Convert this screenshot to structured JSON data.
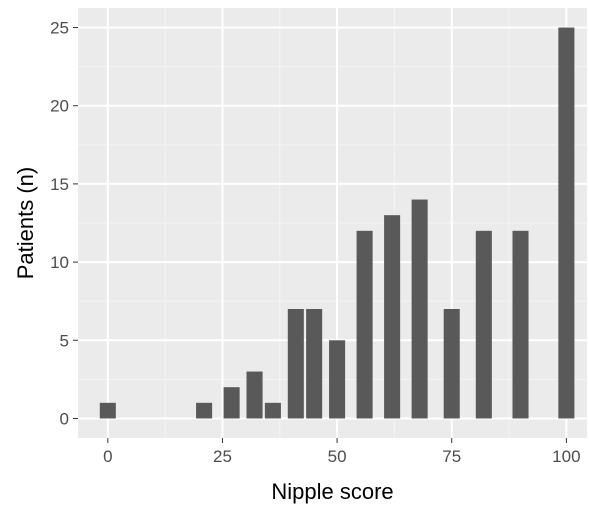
{
  "chart_data": {
    "type": "bar",
    "title": "",
    "xlabel": "Nipple score",
    "ylabel": "Patients (n)",
    "x": [
      0,
      21,
      27,
      32,
      36,
      41,
      45,
      50,
      56,
      62,
      68,
      75,
      82,
      90,
      100
    ],
    "values": [
      1,
      1,
      2,
      3,
      1,
      7,
      7,
      5,
      12,
      13,
      14,
      7,
      12,
      12,
      25
    ],
    "bar_width": 3.5,
    "xlim": [
      -6.5,
      104.5
    ],
    "ylim": [
      -1.25,
      26.25
    ],
    "x_ticks": [
      0,
      25,
      50,
      75,
      100
    ],
    "x_tick_labels": [
      "0",
      "25",
      "50",
      "75",
      "100"
    ],
    "y_ticks": [
      0,
      5,
      10,
      15,
      20,
      25
    ],
    "y_tick_labels": [
      "0",
      "5",
      "10",
      "15",
      "20",
      "25"
    ],
    "grid": true,
    "legend": "none",
    "colors": {
      "panel_background": "#ebebeb",
      "grid_major": "#ffffff",
      "grid_minor": "#f5f5f5",
      "bar_fill": "#595959",
      "tick_mark": "#333333",
      "tick_label": "#4d4d4d",
      "axis_title": "#000000"
    }
  }
}
